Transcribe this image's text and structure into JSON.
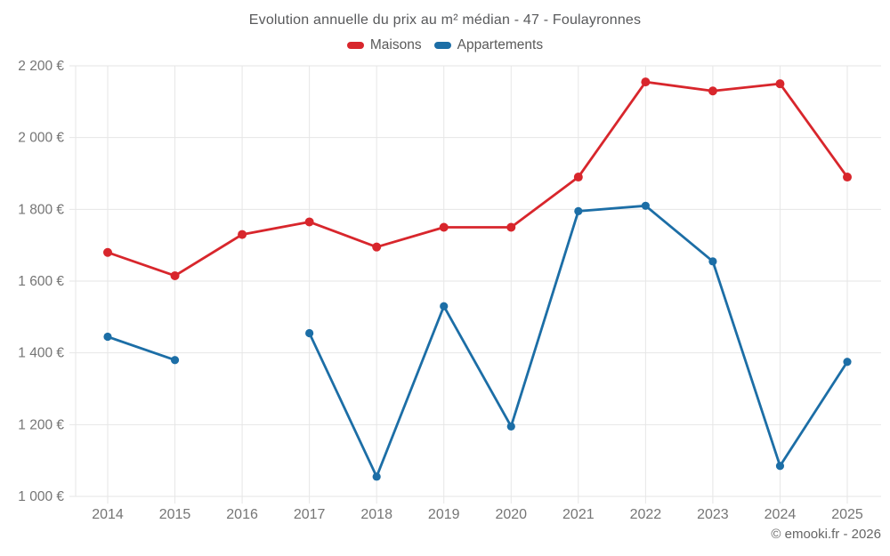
{
  "header": {
    "title": "Evolution annuelle du prix au m² médian - 47 - Foulayronnes"
  },
  "footer": {
    "credit": "© emooki.fr - 2026"
  },
  "colors": {
    "maisons": "#d8262c",
    "appartements": "#1c6ea6",
    "grid": "#e6e6e6",
    "axis_text": "#757575",
    "title_text": "#58595b"
  },
  "chart_data": {
    "type": "line",
    "title": "Evolution annuelle du prix au m² médian - 47 - Foulayronnes",
    "xlabel": "",
    "ylabel": "",
    "categories": [
      "2014",
      "2015",
      "2016",
      "2017",
      "2018",
      "2019",
      "2020",
      "2021",
      "2022",
      "2023",
      "2024",
      "2025"
    ],
    "series": [
      {
        "name": "Maisons",
        "color": "#d8262c",
        "values": [
          1680,
          1615,
          1730,
          1765,
          1695,
          1750,
          1750,
          1890,
          2155,
          2130,
          2150,
          1890
        ]
      },
      {
        "name": "Appartements",
        "color": "#1c6ea6",
        "values": [
          1445,
          1380,
          null,
          1455,
          1055,
          1530,
          1195,
          1795,
          1810,
          1655,
          1085,
          1375
        ]
      }
    ],
    "ylim": [
      1000,
      2200
    ],
    "y_tick_step": 200,
    "y_tick_labels": [
      "1 000 €",
      "1 200 €",
      "1 400 €",
      "1 600 €",
      "1 800 €",
      "2 000 €",
      "2 200 €"
    ],
    "currency_suffix": " €",
    "grid": true,
    "legend_position": "top",
    "marker": "circle"
  }
}
